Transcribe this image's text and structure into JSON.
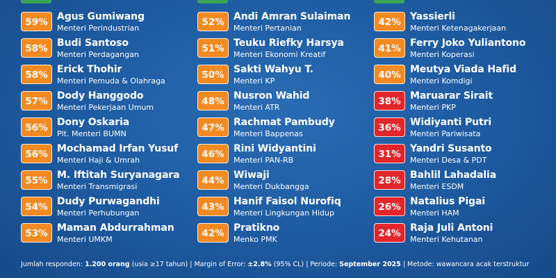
{
  "columns": [
    {
      "items": [
        {
          "score": "59%",
          "name": "Agus Gumiwang",
          "role": "Menteri Perindustrian",
          "color": "#f28a22"
        },
        {
          "score": "58%",
          "name": "Budi Santoso",
          "role": "Menteri Perdagangan",
          "color": "#f28a22"
        },
        {
          "score": "58%",
          "name": "Erick Thohir",
          "role": "Menteri Pemuda & Olahraga",
          "color": "#f28a22"
        },
        {
          "score": "57%",
          "name": "Dody Hanggodo",
          "role": "Menteri Pekerjaan Umum",
          "color": "#f28a22"
        },
        {
          "score": "56%",
          "name": "Dony Oskaria",
          "role": "Plt. Menteri BUMN",
          "color": "#f28a22"
        },
        {
          "score": "56%",
          "name": "Mochamad Irfan Yusuf",
          "role": "Menteri Haji & Umrah",
          "color": "#f28a22"
        },
        {
          "score": "55%",
          "name": "M. Iftitah Suryanagara",
          "role": "Menteri Transmigrasi",
          "color": "#f28a22"
        },
        {
          "score": "54%",
          "name": "Dudy Purwagandhi",
          "role": "Menteri Perhubungan",
          "color": "#f28a22"
        },
        {
          "score": "53%",
          "name": "Maman Abdurrahman",
          "role": "Menteri UMKM",
          "color": "#f28a22"
        }
      ]
    },
    {
      "items": [
        {
          "score": "52%",
          "name": "Andi Amran Sulaiman",
          "role": "Menteri Pertanian",
          "color": "#f28a22"
        },
        {
          "score": "51%",
          "name": "Teuku Riefky Harsya",
          "role": "Menteri Ekonomi Kreatif",
          "color": "#f28a22"
        },
        {
          "score": "50%",
          "name": "Sakti Wahyu T.",
          "role": "Menteri KP",
          "color": "#f28a22"
        },
        {
          "score": "48%",
          "name": "Nusron Wahid",
          "role": "Menteri ATR",
          "color": "#f28a22"
        },
        {
          "score": "47%",
          "name": "Rachmat Pambudy",
          "role": "Menteri Bappenas",
          "color": "#f28a22"
        },
        {
          "score": "46%",
          "name": "Rini Widyantini",
          "role": "Menteri PAN-RB",
          "color": "#f28a22"
        },
        {
          "score": "44%",
          "name": "Wiwaji",
          "role": "Menteri Dukbangga",
          "color": "#f28a22"
        },
        {
          "score": "43%",
          "name": "Hanif Faisol Nurofiq",
          "role": "Menteri Lingkungan Hidup",
          "color": "#f28a22"
        },
        {
          "score": "42%",
          "name": "Pratikno",
          "role": "Menko PMK",
          "color": "#f28a22"
        }
      ]
    },
    {
      "items": [
        {
          "score": "42%",
          "name": "Yassierli",
          "role": "Menteri Ketenagakerjaan",
          "color": "#f28a22"
        },
        {
          "score": "41%",
          "name": "Ferry Joko Yuliantono",
          "role": "Menteri Koperasi",
          "color": "#f28a22"
        },
        {
          "score": "40%",
          "name": "Meutya Viada Hafid",
          "role": "Menteri Komdigi",
          "color": "#f28a22"
        },
        {
          "score": "38%",
          "name": "Maruarar Sirait",
          "role": "Menteri PKP",
          "color": "#e3262b"
        },
        {
          "score": "36%",
          "name": "Widiyanti Putri",
          "role": "Menteri Pariwisata",
          "color": "#e3262b"
        },
        {
          "score": "31%",
          "name": "Yandri Susanto",
          "role": "Menteri Desa & PDT",
          "color": "#e3262b"
        },
        {
          "score": "28%",
          "name": "Bahlil Lahadalia",
          "role": "Menteri ESDM",
          "color": "#e3262b"
        },
        {
          "score": "26%",
          "name": "Natalius Pigai",
          "role": "Menteri HAM",
          "color": "#e3262b"
        },
        {
          "score": "24%",
          "name": "Raja Juli Antoni",
          "role": "Menteri Kehutanan",
          "color": "#e3262b"
        }
      ]
    }
  ],
  "footer": {
    "respondents_label": "Jumlah responden:",
    "respondents_value": "1.200 orang",
    "respondents_note": "(usia ≥17 tahun)",
    "separator": "|",
    "moe_label": "Margin of Error:",
    "moe_value": "±2.8%",
    "moe_note": "(95% CL)",
    "period_label": "Periode:",
    "period_value": "September 2025",
    "method_label": "Metode:",
    "method_value": "wawancara acak terstruktur"
  }
}
